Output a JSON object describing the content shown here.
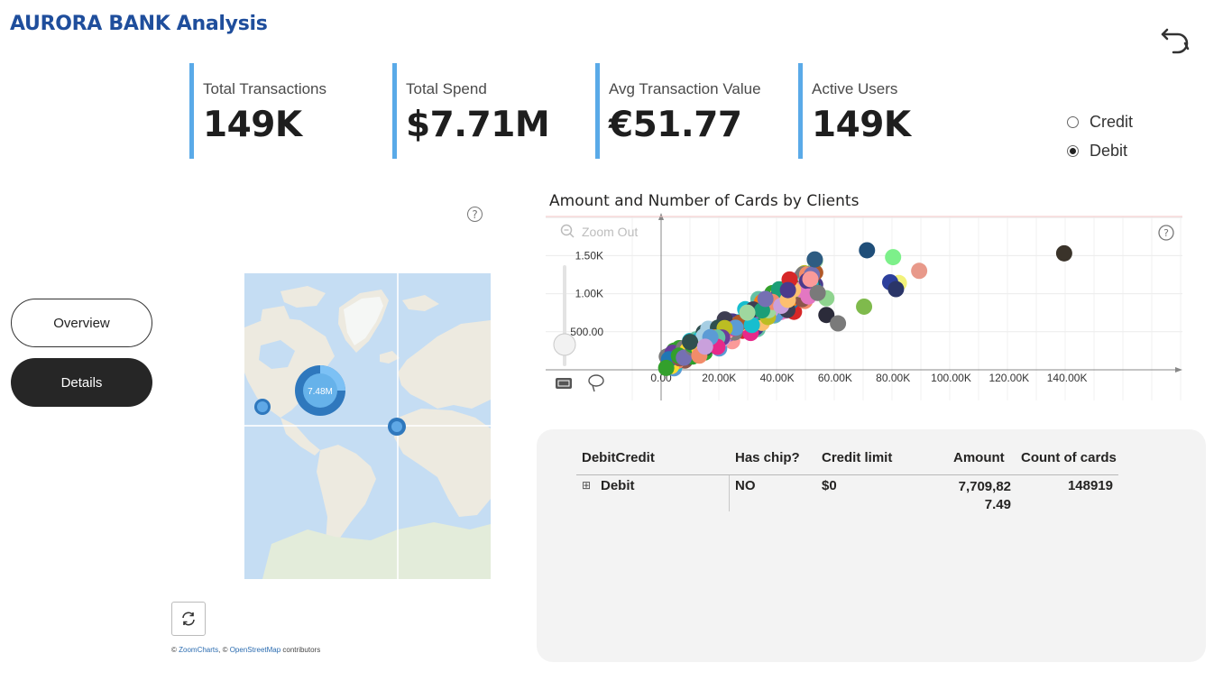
{
  "header": {
    "title": "AURORA BANK Analysis"
  },
  "kpis": [
    {
      "label": "Total Transactions",
      "value": "149K"
    },
    {
      "label": "Total Spend",
      "value": "$7.71M"
    },
    {
      "label": "Avg Transaction Value",
      "value": "€51.77"
    },
    {
      "label": "Active Users",
      "value": "149K"
    }
  ],
  "filter": {
    "options": [
      {
        "label": "Credit",
        "selected": false
      },
      {
        "label": "Debit",
        "selected": true
      }
    ]
  },
  "nav": {
    "overview_label": "Overview",
    "details_label": "Details"
  },
  "help_icon_text": "?",
  "map": {
    "main_bubble_label": "7.48M",
    "attribution_prefix": "© ",
    "attribution_zoomcharts": "ZoomCharts",
    "attribution_sep": ", © ",
    "attribution_osm": "OpenStreetMap",
    "attribution_suffix": " contributors"
  },
  "scatter": {
    "title": "Amount and Number of Cards by Clients",
    "zoom_out_label": "Zoom Out"
  },
  "chart_data": {
    "type": "scatter",
    "title": "Amount and Number of Cards by Clients",
    "x_ticks": [
      "0.00",
      "20.00K",
      "40.00K",
      "60.00K",
      "80.00K",
      "100.00K",
      "120.00K",
      "140.00K"
    ],
    "y_ticks": [
      "500.00",
      "1.00K",
      "1.50K"
    ],
    "xlim": [
      0,
      180000
    ],
    "ylim": [
      0,
      1900
    ],
    "outliers": [
      {
        "x": 139000,
        "y": 1530,
        "color": "#3a332a"
      },
      {
        "x": 71000,
        "y": 1570,
        "color": "#1f4e79"
      },
      {
        "x": 80000,
        "y": 1480,
        "color": "#7df08a"
      },
      {
        "x": 53000,
        "y": 1450,
        "color": "#2e5c82"
      },
      {
        "x": 89000,
        "y": 1300,
        "color": "#e8998a"
      },
      {
        "x": 82000,
        "y": 1140,
        "color": "#f2f27a"
      },
      {
        "x": 79000,
        "y": 1150,
        "color": "#2c3f9c"
      },
      {
        "x": 81000,
        "y": 1060,
        "color": "#2a3568"
      },
      {
        "x": 70000,
        "y": 830,
        "color": "#7fba4c"
      },
      {
        "x": 57000,
        "y": 940,
        "color": "#8fd48f"
      },
      {
        "x": 54000,
        "y": 1010,
        "color": "#7a7a7a"
      },
      {
        "x": 57000,
        "y": 720,
        "color": "#2b2b3a"
      },
      {
        "x": 61000,
        "y": 610,
        "color": "#7a7a7a"
      }
    ]
  },
  "table": {
    "headers": {
      "debitcredit": "DebitCredit",
      "has_chip": "Has chip?",
      "credit_limit": "Credit limit",
      "amount": "Amount",
      "count": "Count of cards"
    },
    "row": {
      "expand_icon": "⊞",
      "debitcredit": "Debit",
      "has_chip": "NO",
      "credit_limit": "$0",
      "amount_line1": "7,709,82",
      "amount_line2": "7.49",
      "count": "148919"
    }
  }
}
